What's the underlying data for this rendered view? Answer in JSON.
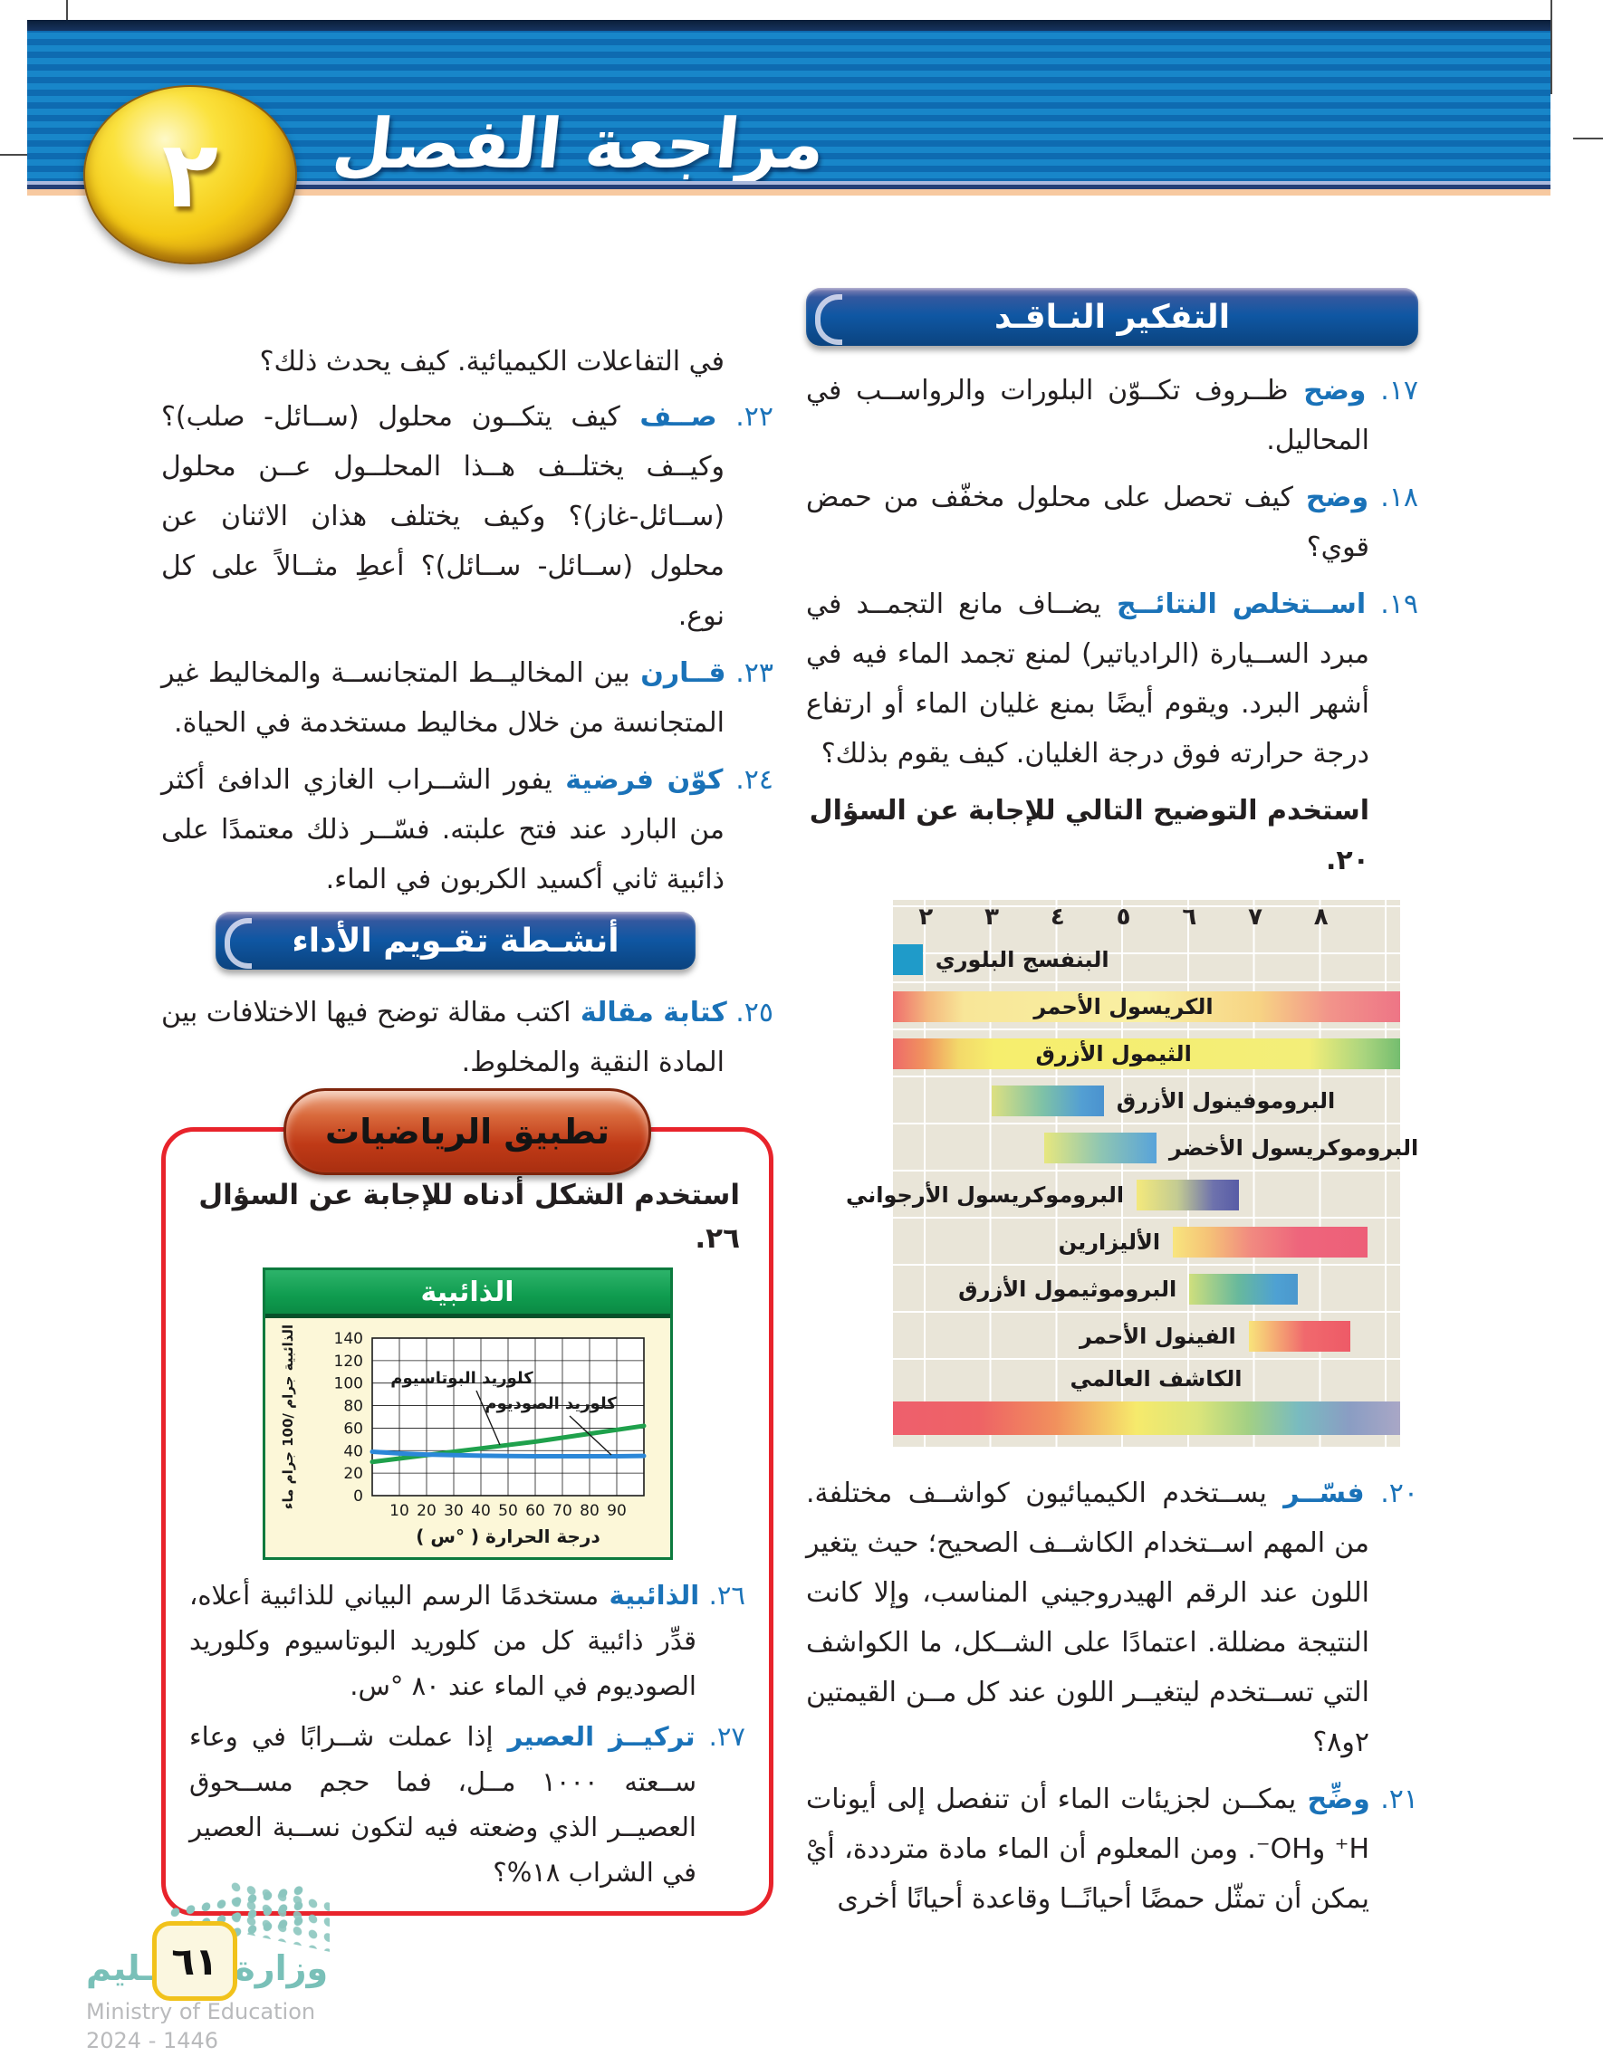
{
  "header": {
    "title": "مراجعة الفصل",
    "chapter_number": "٢"
  },
  "right_column": {
    "banner": "التفكير النـاقـد",
    "questions_top": [
      {
        "num": "١٧",
        "keyword": "وضح",
        "text": "ظــروف تكــوّن البلورات والرواســب في المحاليل."
      },
      {
        "num": "١٨",
        "keyword": "وضح",
        "text": "كيف تحصل على محلول مخفّف من حمض قوي؟"
      },
      {
        "num": "١٩",
        "keyword": "اســتخلص النتائــج",
        "text": "يضــاف مانع التجمــد في مبرد الســيارة (الرادياتير) لمنع تجمد الماء فيه في أشهر البرد. ويقوم أيضًا بمنع غليان الماء أو ارتفاع درجة حرارته فوق درجة الغليان. كيف يقوم بذلك؟"
      }
    ],
    "note": "استخدم التوضيح التالي للإجابة عن السؤال ٢٠.",
    "questions_bottom": [
      {
        "num": "٢٠",
        "keyword": "فسّــر",
        "text": "يســتخدم الكيميائيون كواشــف مختلفة. من المهم اســتخدام الكاشــف الصحيح؛ حيث يتغير اللون عند الرقم الهيدروجيني المناسب، وإلا كانت النتيجة مضللة. اعتمادًا على الشــكل، ما الكواشف التي تســتخدم ليتغيــر اللون عند كل مــن القيمتين ٢و٨؟"
      },
      {
        "num": "٢١",
        "keyword": "وضِّح",
        "text": "يمكــن لجزيئات الماء أن تنفصل إلى أيونات H⁺ وOH⁻. ومن المعلوم أن الماء مادة مترددة، أيْ يمكن أن تمثّل حمضًا أحيانًــا وقاعدة أحيانًا أخرى"
      }
    ]
  },
  "left_column": {
    "continuation": "في التفاعلات الكيميائية. كيف يحدث ذلك؟",
    "questions_top": [
      {
        "num": "٢٢",
        "keyword": "صــف",
        "text": "كيف يتكــون محلول (ســائل- صلب)؟ وكيــف يختلــف هــذا المحلــول عــن محلول (ســائل-غاز)؟ وكيف يختلف هذان الاثنان عن محلول (ســائل- ســائل)؟ أعطِ مثــالاً على كل نوع."
      },
      {
        "num": "٢٣",
        "keyword": "قــارن",
        "text": "بين المخاليــط المتجانســة والمخاليط غير المتجانسة من خلال مخاليط مستخدمة في الحياة."
      },
      {
        "num": "٢٤",
        "keyword": "كوّن فرضية",
        "text": "يفور الشــراب الغازي الدافئ أكثر من البارد عند فتح علبته. فسّــر ذلك معتمدًا على ذائبية ثاني أكسيد الكربون في الماء."
      }
    ],
    "banner": "أنشـطة تقـويم الأداء",
    "questions_mid": [
      {
        "num": "٢٥",
        "keyword": "كتابة مقالة",
        "text": "اكتب مقالة توضح فيها الاختلافات بين المادة النقية والمخلوط."
      }
    ],
    "math_box": {
      "pill": "تطبيق الرياضيات",
      "instruction": "استخدم الشكل أدناه للإجابة عن السؤال ٢٦.",
      "questions": [
        {
          "num": "٢٦",
          "keyword": "الذائبية",
          "text": "مستخدمًا الرسم البياني للذائبية أعلاه، قدِّر ذائبية كل من كلوريد البوتاسيوم وكلوريد الصوديوم في الماء عند ٨٠ °س."
        },
        {
          "num": "٢٧",
          "keyword": "تركيــز العصير",
          "text": "إذا عملت شــرابًا في وعاء ســعته ١٠٠٠ مــل، فما حجم مســحوق العصيــر الذي وضعته فيه لتكون نســبة العصير في الشراب ١٨%؟"
        }
      ]
    }
  },
  "footer": {
    "ministry_ar": "وزارة التـعـليم",
    "ministry_en": "Ministry of Education",
    "years": "2024 - 1446",
    "page_badge": "٦١"
  },
  "chart_data": [
    {
      "type": "bar",
      "subtype": "ph-indicator-ranges",
      "background": "#e9e5d8",
      "x_axis": {
        "ticks": [
          "٢",
          "٣",
          "٤",
          "٥",
          "٦",
          "٧",
          "٨"
        ],
        "values": [
          2,
          3,
          4,
          5,
          6,
          7,
          8
        ],
        "range": [
          1.5,
          9.2
        ]
      },
      "bars": [
        {
          "name": "البنفسج البلوري",
          "start": 1.5,
          "end": 1.95,
          "label_pos": "after",
          "colors": [
            [
              0,
              "#1f9bc9"
            ],
            [
              100,
              "#1f9bc9"
            ]
          ]
        },
        {
          "name": "الكريسول الأحمر",
          "start": 1.5,
          "end": 9.2,
          "label_pos": "center",
          "label_ph": 5.0,
          "colors": [
            [
              0,
              "#ef6f6d"
            ],
            [
              7,
              "#f4b97e"
            ],
            [
              14,
              "#f8e698"
            ],
            [
              50,
              "#f9f0a3"
            ],
            [
              72,
              "#f7d484"
            ],
            [
              86,
              "#f2948a"
            ],
            [
              100,
              "#ee7586"
            ]
          ]
        },
        {
          "name": "الثيمول الأزرق",
          "start": 1.5,
          "end": 9.2,
          "label_pos": "center",
          "label_ph": 4.85,
          "colors": [
            [
              0,
              "#ee6a6a"
            ],
            [
              6,
              "#f0925e"
            ],
            [
              13,
              "#f3d96a"
            ],
            [
              20,
              "#f6ee6d"
            ],
            [
              82,
              "#f3ee79"
            ],
            [
              93,
              "#a9d47e"
            ],
            [
              100,
              "#74bd6f"
            ]
          ]
        },
        {
          "name": "البروموفينول الأزرق",
          "start": 3.0,
          "end": 4.7,
          "label_pos": "after",
          "colors": [
            [
              0,
              "#dde081"
            ],
            [
              45,
              "#7fc2a6"
            ],
            [
              80,
              "#539fd3"
            ],
            [
              100,
              "#4a92cf"
            ]
          ]
        },
        {
          "name": "البروموكريسول الأخضر",
          "start": 3.8,
          "end": 5.5,
          "label_pos": "after",
          "colors": [
            [
              0,
              "#e7e77e"
            ],
            [
              50,
              "#8fc6b2"
            ],
            [
              100,
              "#58a3da"
            ]
          ]
        },
        {
          "name": "البروموكريسول الأرجواني",
          "start": 5.2,
          "end": 6.75,
          "label_pos": "before",
          "colors": [
            [
              0,
              "#f4e97c"
            ],
            [
              40,
              "#c3cb92"
            ],
            [
              75,
              "#6e72ad"
            ],
            [
              100,
              "#585ca6"
            ]
          ]
        },
        {
          "name": "الأليزارين",
          "start": 5.75,
          "end": 8.7,
          "label_pos": "before",
          "colors": [
            [
              0,
              "#f8e57e"
            ],
            [
              18,
              "#f5c377"
            ],
            [
              40,
              "#f18a80"
            ],
            [
              65,
              "#ee657c"
            ],
            [
              100,
              "#ed5f78"
            ]
          ]
        },
        {
          "name": "البروموثيمول الأزرق",
          "start": 6.0,
          "end": 7.65,
          "label_pos": "before",
          "colors": [
            [
              0,
              "#cfdf7d"
            ],
            [
              45,
              "#68b99c"
            ],
            [
              80,
              "#4ea1d3"
            ],
            [
              100,
              "#4b97cd"
            ]
          ]
        },
        {
          "name": "الفينول الأحمر",
          "start": 6.9,
          "end": 8.45,
          "label_pos": "before",
          "colors": [
            [
              0,
              "#f8e47b"
            ],
            [
              25,
              "#f5ad74"
            ],
            [
              55,
              "#f0696d"
            ],
            [
              100,
              "#ee5a67"
            ]
          ]
        },
        {
          "name": "الكاشف العالمي",
          "start": 1.5,
          "end": 9.2,
          "label_pos": "own-row",
          "label_row_right_ph": 6.8,
          "full_bottom": true,
          "colors": [
            [
              0,
              "#ee5f6d"
            ],
            [
              17,
              "#ee6365"
            ],
            [
              32,
              "#f1905d"
            ],
            [
              48,
              "#f6ea6c"
            ],
            [
              60,
              "#dce57a"
            ],
            [
              70,
              "#a3d084"
            ],
            [
              80,
              "#79bbc0"
            ],
            [
              90,
              "#8a9dc3"
            ],
            [
              100,
              "#a9a7c6"
            ]
          ]
        }
      ]
    },
    {
      "type": "line",
      "title": "الذائبية",
      "xlabel": "درجة الحرارة ( °س )",
      "ylabel": "الذائبية جرام /100 جرام ماء",
      "xlim": [
        0,
        100
      ],
      "ylim": [
        0,
        140
      ],
      "x_ticks": [
        10,
        20,
        30,
        40,
        50,
        60,
        70,
        80,
        90
      ],
      "y_ticks": [
        0,
        20,
        40,
        60,
        80,
        100,
        120,
        140
      ],
      "grid": true,
      "series": [
        {
          "name": "كلوريد البوتاسيوم",
          "color": "#1fa14c",
          "points": [
            [
              0,
              30
            ],
            [
              10,
              33
            ],
            [
              20,
              36
            ],
            [
              30,
              39
            ],
            [
              40,
              42
            ],
            [
              50,
              45
            ],
            [
              60,
              48
            ],
            [
              70,
              51.5
            ],
            [
              80,
              55
            ],
            [
              90,
              58.5
            ],
            [
              100,
              62
            ]
          ],
          "label_xy": [
            217,
            68
          ],
          "leader": [
            [
              233,
              76
            ],
            [
              259,
              136
            ]
          ]
        },
        {
          "name": "كلوريد الصوديوم",
          "color": "#2b87d8",
          "points": [
            [
              0,
              39
            ],
            [
              10,
              37.5
            ],
            [
              20,
              36.5
            ],
            [
              30,
              36
            ],
            [
              40,
              35.5
            ],
            [
              50,
              35.2
            ],
            [
              60,
              35
            ],
            [
              70,
              35
            ],
            [
              80,
              35
            ],
            [
              90,
              35
            ],
            [
              100,
              35.3
            ]
          ],
          "label_xy": [
            315,
            96
          ],
          "leader": [
            [
              336,
              104
            ],
            [
              382,
              147
            ]
          ]
        }
      ]
    }
  ]
}
